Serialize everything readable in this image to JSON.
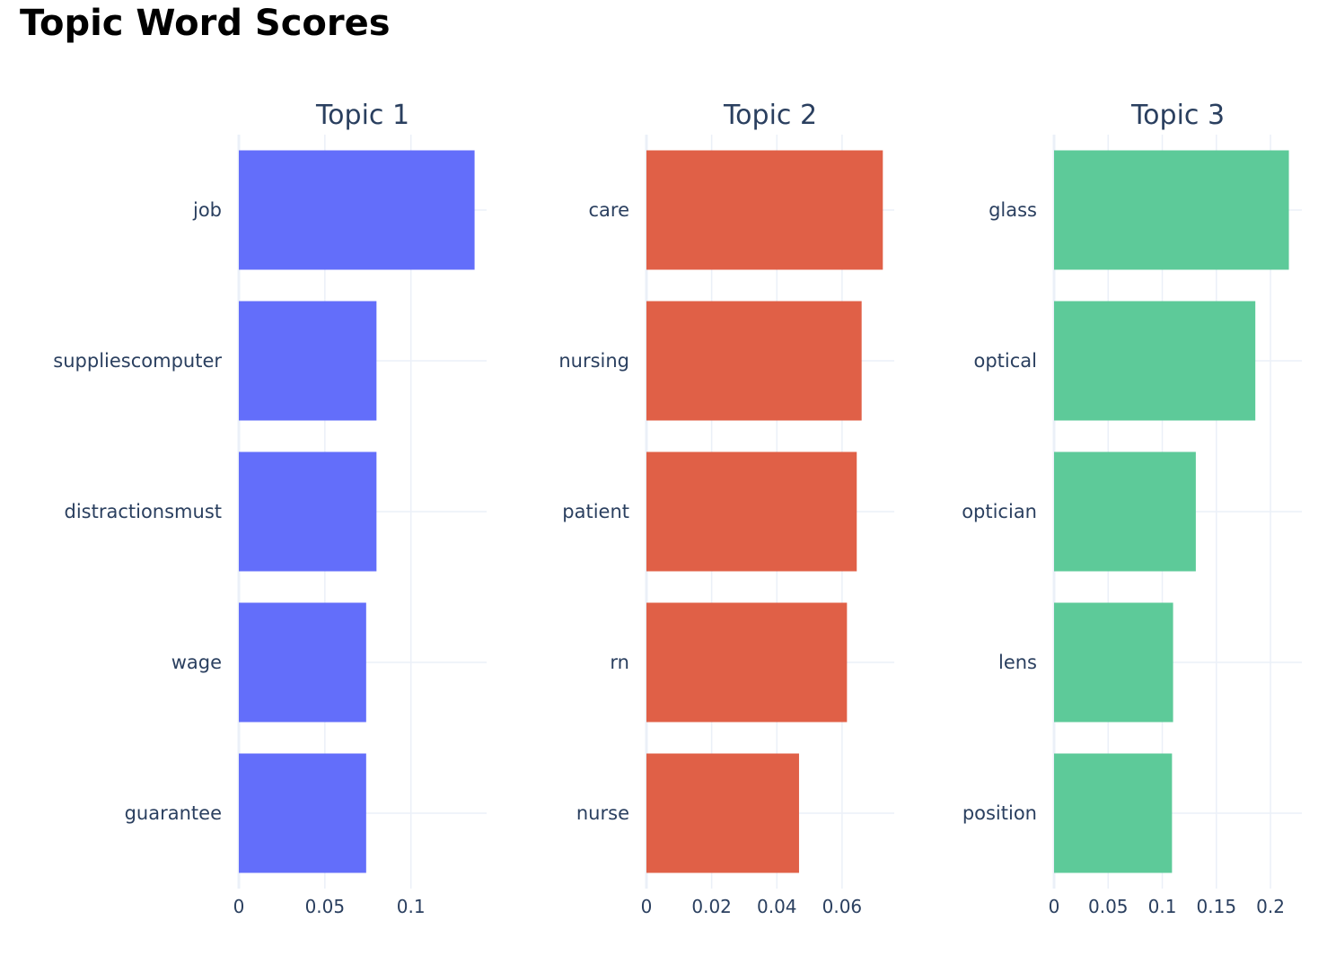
{
  "title": "Topic Word Scores",
  "chart_data": [
    {
      "type": "bar",
      "orientation": "horizontal",
      "title": "Topic 1",
      "color": "#636efa",
      "categories": [
        "job",
        "suppliescomputer",
        "distractionsmust",
        "wage",
        "guarantee"
      ],
      "values": [
        0.137,
        0.08,
        0.08,
        0.074,
        0.074
      ],
      "xticks": [
        0,
        0.05,
        0.1
      ],
      "xtick_labels": [
        "0",
        "0.05",
        "0.1"
      ],
      "xlim": [
        0,
        0.144
      ],
      "grid": true
    },
    {
      "type": "bar",
      "orientation": "horizontal",
      "title": "Topic 2",
      "color": "#e06047",
      "categories": [
        "care",
        "nursing",
        "patient",
        "rn",
        "nurse"
      ],
      "values": [
        0.0725,
        0.066,
        0.0645,
        0.0615,
        0.0468
      ],
      "xticks": [
        0,
        0.02,
        0.04,
        0.06
      ],
      "xtick_labels": [
        "0",
        "0.02",
        "0.04",
        "0.06"
      ],
      "xlim": [
        0,
        0.076
      ],
      "grid": true
    },
    {
      "type": "bar",
      "orientation": "horizontal",
      "title": "Topic 3",
      "color": "#5dca99",
      "categories": [
        "glass",
        "optical",
        "optician",
        "lens",
        "position"
      ],
      "values": [
        0.217,
        0.186,
        0.131,
        0.11,
        0.109
      ],
      "xticks": [
        0,
        0.05,
        0.1,
        0.15,
        0.2
      ],
      "xtick_labels": [
        "0",
        "0.05",
        "0.1",
        "0.15",
        "0.2"
      ],
      "xlim": [
        0,
        0.229
      ],
      "grid": true
    }
  ]
}
